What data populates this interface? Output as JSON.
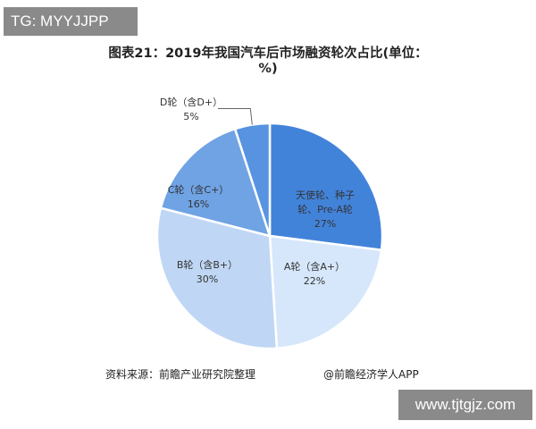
{
  "tags": {
    "top_left": "TG: MYYJJPP",
    "bottom_right": "www.tjtgjz.com"
  },
  "chart_data": {
    "type": "pie",
    "title": "图表21：2019年我国汽车后市场融资轮次占比(单位：%)",
    "start": "top",
    "direction": "clockwise",
    "slices": [
      {
        "label": [
          "天使轮、种子",
          "轮、Pre-A轮"
        ],
        "value": 27,
        "value_label": "27%",
        "color": "#4283da"
      },
      {
        "label": [
          "A轮（含A+）"
        ],
        "value": 22,
        "value_label": "22%",
        "color": "#d6e7fb"
      },
      {
        "label": [
          "B轮（含B+）"
        ],
        "value": 30,
        "value_label": "30%",
        "color": "#bfd7f4"
      },
      {
        "label": [
          "C轮（含C+）"
        ],
        "value": 16,
        "value_label": "16%",
        "color": "#6fa3e4"
      },
      {
        "label": [
          "D轮（含D+）"
        ],
        "value": 5,
        "value_label": "5%",
        "color": "#5793e0"
      }
    ]
  },
  "footer": {
    "source": "资料来源：前瞻产业研究院整理",
    "credit": "@前瞻经济学人APP"
  }
}
